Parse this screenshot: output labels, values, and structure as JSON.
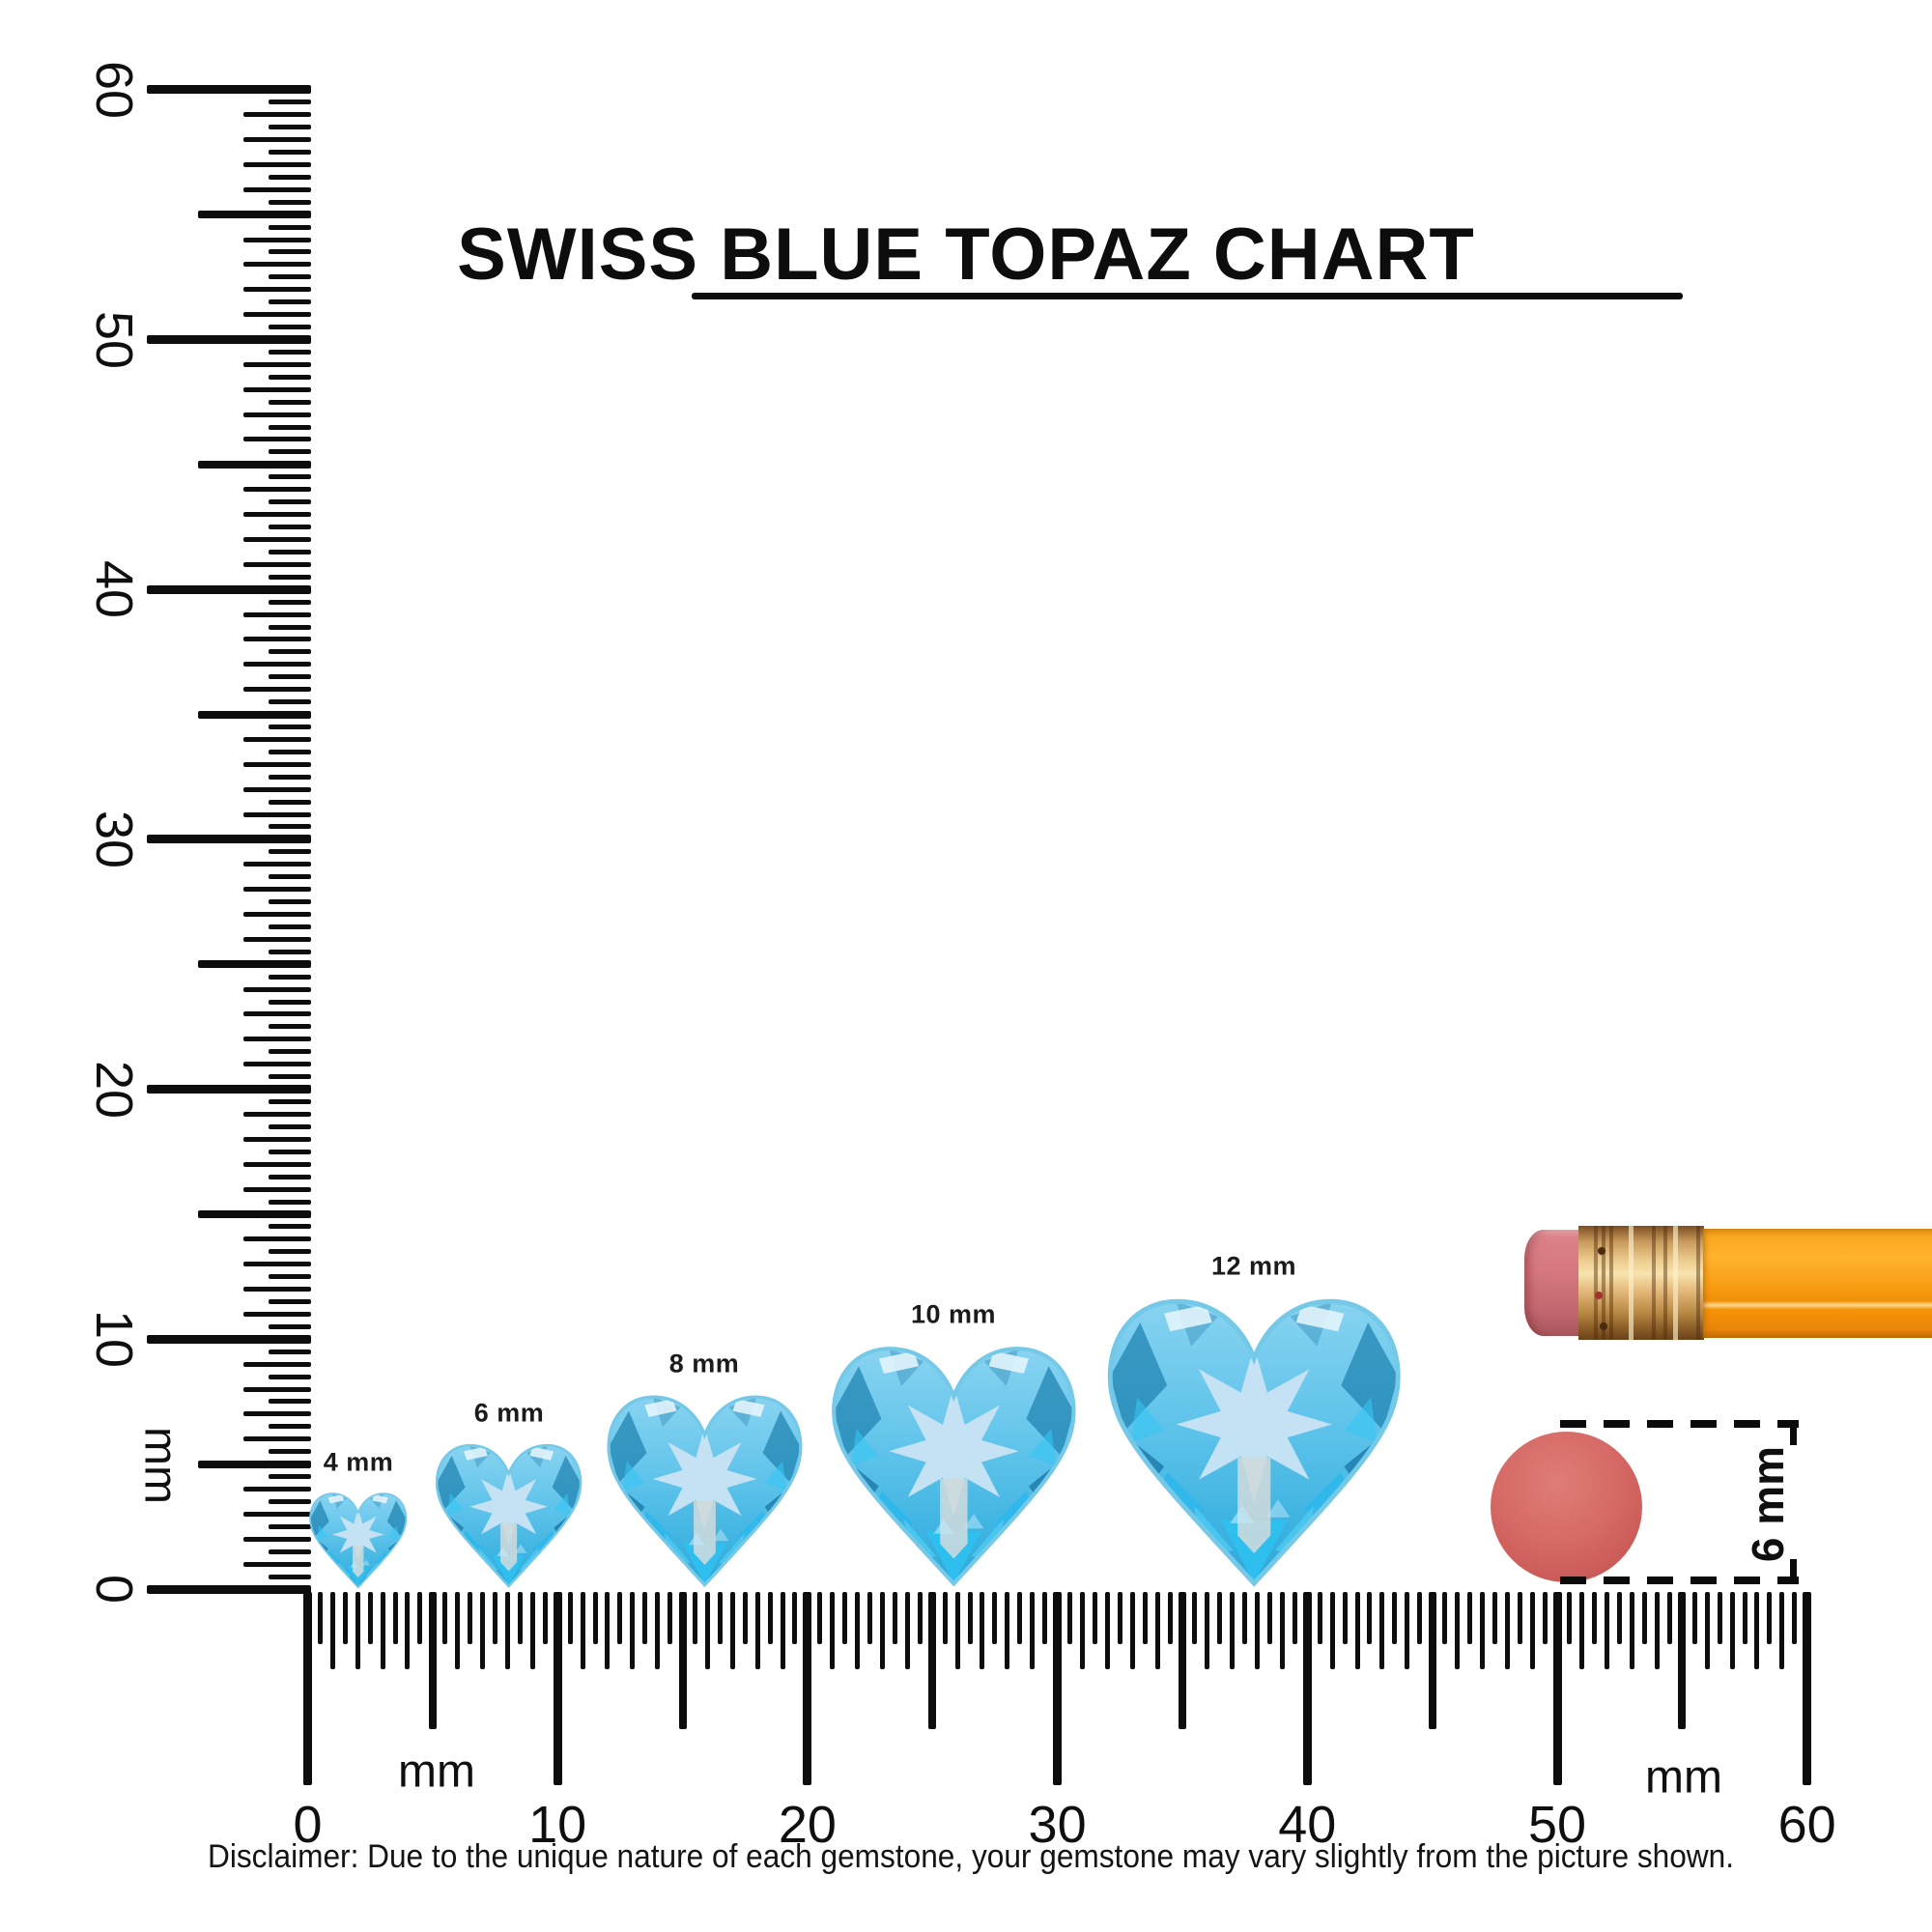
{
  "title": {
    "text": "SWISS BLUE TOPAZ CHART"
  },
  "gems": {
    "gem_name": "Swiss Blue Topaz",
    "shape": "heart",
    "items": [
      {
        "label": "4 mm",
        "size_mm": 4
      },
      {
        "label": "6 mm",
        "size_mm": 6
      },
      {
        "label": "8 mm",
        "size_mm": 8
      },
      {
        "label": "10 mm",
        "size_mm": 10
      },
      {
        "label": "12 mm",
        "size_mm": 12
      }
    ],
    "colors": {
      "base_blue": "#5ec3ea",
      "facet_light": "#c9e4f3",
      "facet_bright": "#2ec2f2",
      "facet_dark": "#1e82b0"
    }
  },
  "rulers": {
    "vertical": {
      "unit_label": "mm",
      "numbers": [
        60,
        50,
        40,
        30,
        20,
        10,
        0
      ],
      "range_mm": [
        0,
        60
      ],
      "tick_step_mm": 0.5
    },
    "horizontal": {
      "unit_labels": [
        "mm",
        "mm"
      ],
      "numbers": [
        0,
        10,
        20,
        30,
        40,
        50,
        60
      ],
      "range_mm": [
        0,
        60
      ],
      "tick_step_mm": 0.5
    }
  },
  "annotation": {
    "label": "6 mm"
  },
  "scale_objects": {
    "pencil": {
      "parts": [
        "eraser-tip",
        "ferrule",
        "body"
      ],
      "body_color": "#f89c12",
      "ferrule_color": "#e9c388",
      "eraser_color": "#d4747b"
    },
    "round_eraser": {
      "diameter_label": "6 mm",
      "color": "#d66a66"
    }
  },
  "disclaimer": "Disclaimer: Due to the unique nature of each gemstone, your gemstone may vary slightly from the picture shown.",
  "chart_data": {
    "type": "table",
    "title": "SWISS BLUE TOPAZ CHART",
    "categories": [
      "4 mm",
      "6 mm",
      "8 mm",
      "10 mm",
      "12 mm"
    ],
    "values": [
      4,
      6,
      8,
      10,
      12
    ],
    "units": "mm",
    "xlabel": "mm",
    "ylabel": "mm",
    "axis_range_mm": [
      0,
      60
    ],
    "reference_labels": [
      "6 mm"
    ]
  }
}
